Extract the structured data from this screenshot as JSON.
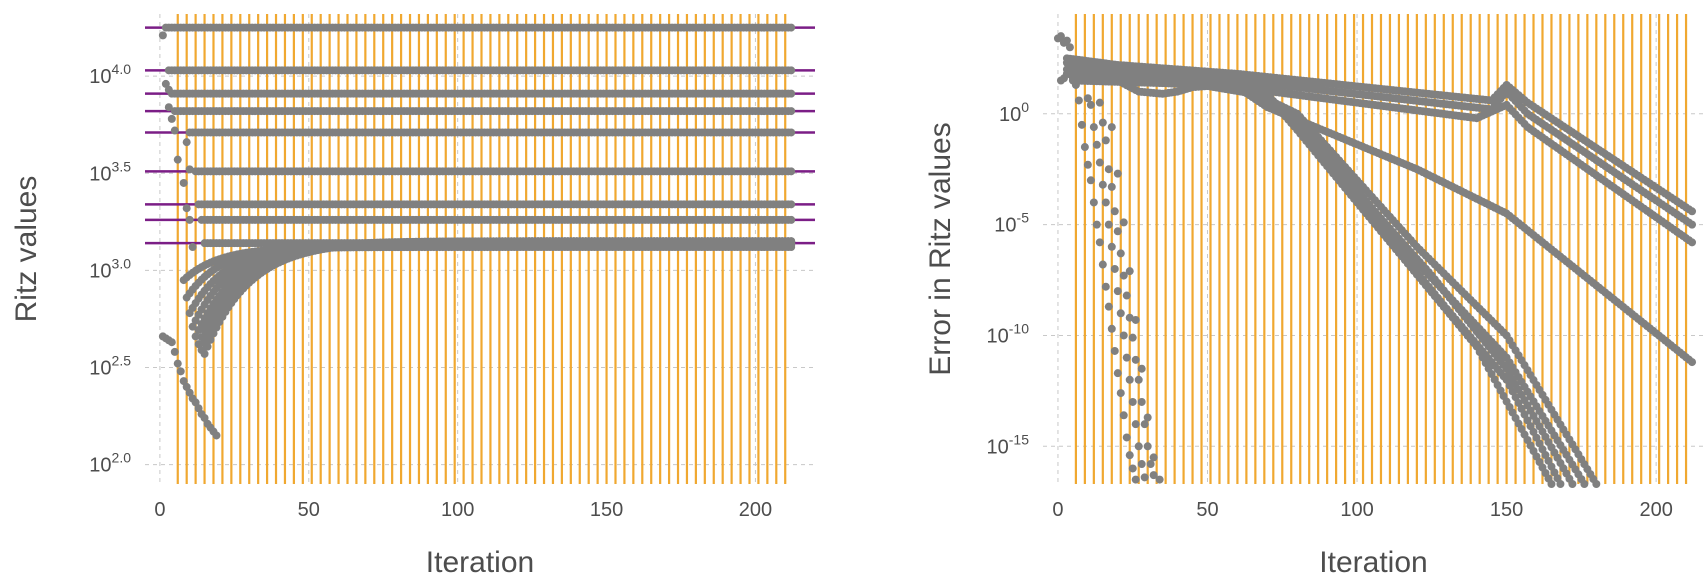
{
  "colors": {
    "points": "#808080",
    "vlines": "#f0a830",
    "hlines": "#7b1e86",
    "grid": "#c8c8c8",
    "text": "#4d4d4d"
  },
  "chart_data": [
    {
      "type": "scatter",
      "title": "",
      "xlabel": "Iteration",
      "ylabel": "Ritz values",
      "yscale": "log10",
      "xlim": [
        -5,
        220
      ],
      "ylim": [
        1.9,
        4.32
      ],
      "xticks": [
        {
          "value": 0,
          "label": "0"
        },
        {
          "value": 50,
          "label": "50"
        },
        {
          "value": 100,
          "label": "100"
        },
        {
          "value": 150,
          "label": "150"
        },
        {
          "value": 200,
          "label": "200"
        }
      ],
      "yticks": [
        {
          "value": 2.0,
          "base": "10",
          "exp": "2.0"
        },
        {
          "value": 2.5,
          "base": "10",
          "exp": "2.5"
        },
        {
          "value": 3.0,
          "base": "10",
          "exp": "3.0"
        },
        {
          "value": 3.5,
          "base": "10",
          "exp": "3.5"
        },
        {
          "value": 4.0,
          "base": "10",
          "exp": "4.0"
        }
      ],
      "grid": true,
      "vertical_lines": {
        "from": 6,
        "to": 212,
        "step": 3
      },
      "horizontal_lines_log10": [
        4.25,
        4.03,
        3.91,
        3.82,
        3.71,
        3.51,
        3.34,
        3.26,
        3.14
      ],
      "converged_series_log10": [
        {
          "value": 4.25,
          "start": 2
        },
        {
          "value": 4.03,
          "start": 3
        },
        {
          "value": 3.91,
          "start": 4
        },
        {
          "value": 3.82,
          "start": 5
        },
        {
          "value": 3.71,
          "start": 10
        },
        {
          "value": 3.51,
          "start": 12
        },
        {
          "value": 3.34,
          "start": 13
        },
        {
          "value": 3.26,
          "start": 14
        },
        {
          "value": 3.14,
          "start": 15
        }
      ],
      "early_points_log10": [
        [
          1,
          4.21
        ],
        [
          2,
          3.96
        ],
        [
          3,
          3.84
        ],
        [
          3,
          3.93
        ],
        [
          4,
          3.78
        ],
        [
          5,
          3.72
        ],
        [
          6,
          3.57
        ],
        [
          8,
          3.45
        ],
        [
          9,
          3.32
        ],
        [
          9,
          3.66
        ],
        [
          10,
          3.26
        ],
        [
          10,
          3.52
        ],
        [
          11,
          3.12
        ],
        [
          1,
          2.66
        ],
        [
          2,
          2.65
        ],
        [
          3,
          2.64
        ],
        [
          4,
          2.63
        ],
        [
          5,
          2.58
        ],
        [
          6,
          2.52
        ],
        [
          7,
          2.48
        ],
        [
          8,
          2.43
        ],
        [
          9,
          2.4
        ],
        [
          10,
          2.37
        ],
        [
          11,
          2.34
        ],
        [
          12,
          2.32
        ],
        [
          13,
          2.29
        ],
        [
          14,
          2.26
        ],
        [
          15,
          2.24
        ],
        [
          16,
          2.21
        ],
        [
          17,
          2.19
        ],
        [
          18,
          2.17
        ],
        [
          19,
          2.15
        ]
      ],
      "transient_curves": [
        {
          "start": 8,
          "from": 2.95,
          "to": 3.12,
          "tau": 12
        },
        {
          "start": 9,
          "from": 2.86,
          "to": 3.13,
          "tau": 12
        },
        {
          "start": 10,
          "from": 2.78,
          "to": 3.14,
          "tau": 13
        },
        {
          "start": 11,
          "from": 2.71,
          "to": 3.14,
          "tau": 13
        },
        {
          "start": 12,
          "from": 2.66,
          "to": 3.14,
          "tau": 14
        },
        {
          "start": 13,
          "from": 2.62,
          "to": 3.15,
          "tau": 14
        },
        {
          "start": 14,
          "from": 2.59,
          "to": 3.15,
          "tau": 15
        },
        {
          "start": 15,
          "from": 2.57,
          "to": 3.15,
          "tau": 15
        }
      ]
    },
    {
      "type": "scatter",
      "title": "",
      "xlabel": "Iteration",
      "ylabel": "Error in Ritz values",
      "yscale": "log10",
      "xlim": [
        -5,
        216
      ],
      "ylim": [
        -16.7,
        4.5
      ],
      "xticks": [
        {
          "value": 0,
          "label": "0"
        },
        {
          "value": 50,
          "label": "50"
        },
        {
          "value": 100,
          "label": "100"
        },
        {
          "value": 150,
          "label": "150"
        },
        {
          "value": 200,
          "label": "200"
        }
      ],
      "yticks": [
        {
          "value": 0,
          "base": "10",
          "exp": "0"
        },
        {
          "value": -5,
          "base": "10",
          "exp": "-5"
        },
        {
          "value": -10,
          "base": "10",
          "exp": "-10"
        },
        {
          "value": -15,
          "base": "10",
          "exp": "-15"
        }
      ],
      "grid": true,
      "vertical_lines": {
        "from": 6,
        "to": 212,
        "step": 3
      },
      "error_series_log10": [
        {
          "start": 3,
          "knots": [
            [
              3,
              2.5
            ],
            [
              20,
              2.2
            ],
            [
              60,
              1.8
            ],
            [
              145,
              0.6
            ],
            [
              150,
              1.3
            ],
            [
              157,
              0.5
            ],
            [
              212,
              -4.4
            ]
          ]
        },
        {
          "start": 3,
          "knots": [
            [
              3,
              2.3
            ],
            [
              20,
              2.0
            ],
            [
              60,
              1.5
            ],
            [
              145,
              0.2
            ],
            [
              150,
              1.0
            ],
            [
              157,
              0.0
            ],
            [
              212,
              -5.0
            ]
          ]
        },
        {
          "start": 3,
          "knots": [
            [
              3,
              2.0
            ],
            [
              20,
              1.8
            ],
            [
              60,
              1.2
            ],
            [
              140,
              -0.2
            ],
            [
              150,
              0.4
            ],
            [
              157,
              -0.6
            ],
            [
              212,
              -5.8
            ]
          ]
        },
        {
          "start": 3,
          "knots": [
            [
              3,
              1.8
            ],
            [
              20,
              1.5
            ],
            [
              60,
              1.2
            ],
            [
              70,
              0.3
            ],
            [
              120,
              -2.5
            ],
            [
              150,
              -4.5
            ],
            [
              212,
              -11.2
            ]
          ]
        },
        {
          "start": 5,
          "knots": [
            [
              5,
              1.5
            ],
            [
              30,
              1.4
            ],
            [
              60,
              1.3
            ],
            [
              80,
              0.0
            ],
            [
              120,
              -6.0
            ],
            [
              150,
              -10.0
            ],
            [
              180,
              -16.7
            ]
          ]
        },
        {
          "start": 5,
          "knots": [
            [
              5,
              1.6
            ],
            [
              30,
              1.5
            ],
            [
              65,
              1.2
            ],
            [
              85,
              -1.0
            ],
            [
              120,
              -6.7
            ],
            [
              150,
              -11.0
            ],
            [
              176,
              -16.7
            ]
          ]
        },
        {
          "start": 4,
          "knots": [
            [
              4,
              1.8
            ],
            [
              30,
              1.6
            ],
            [
              68,
              1.0
            ],
            [
              90,
              -2.0
            ],
            [
              125,
              -7.3
            ],
            [
              150,
              -11.5
            ],
            [
              172,
              -16.7
            ]
          ]
        },
        {
          "start": 4,
          "knots": [
            [
              4,
              2.0
            ],
            [
              30,
              1.7
            ],
            [
              70,
              0.8
            ],
            [
              95,
              -3.0
            ],
            [
              130,
              -8.8
            ],
            [
              150,
              -12.0
            ],
            [
              168,
              -16.7
            ]
          ]
        },
        {
          "start": 6,
          "knots": [
            [
              6,
              1.8
            ],
            [
              20,
              1.5
            ],
            [
              27,
              1.0
            ],
            [
              35,
              0.9
            ],
            [
              40,
              1.0
            ],
            [
              45,
              1.2
            ],
            [
              55,
              1.3
            ],
            [
              70,
              0.9
            ],
            [
              100,
              -4.0
            ],
            [
              140,
              -10.5
            ],
            [
              165,
              -16.7
            ]
          ]
        }
      ],
      "early_points_log10": [
        [
          0,
          3.4
        ],
        [
          1,
          3.5
        ],
        [
          2,
          3.2
        ],
        [
          3,
          3.3
        ],
        [
          4,
          3.0
        ],
        [
          5,
          2.4
        ],
        [
          1,
          1.5
        ],
        [
          2,
          1.6
        ],
        [
          6,
          1.3
        ],
        [
          7,
          0.6
        ],
        [
          8,
          -0.5
        ],
        [
          9,
          -1.5
        ],
        [
          10,
          -2.3
        ],
        [
          11,
          -3.0
        ],
        [
          12,
          -4.0
        ],
        [
          13,
          -5.0
        ],
        [
          14,
          -5.8
        ],
        [
          15,
          -6.8
        ],
        [
          16,
          -7.8
        ],
        [
          17,
          -8.7
        ],
        [
          18,
          -9.7
        ],
        [
          19,
          -10.7
        ],
        [
          20,
          -11.7
        ],
        [
          21,
          -12.6
        ],
        [
          22,
          -13.6
        ],
        [
          23,
          -14.6
        ],
        [
          24,
          -15.4
        ],
        [
          25,
          -16.0
        ],
        [
          26,
          -16.5
        ],
        [
          10,
          0.7
        ],
        [
          11,
          0.4
        ],
        [
          12,
          -0.6
        ],
        [
          13,
          -1.4
        ],
        [
          14,
          -2.2
        ],
        [
          15,
          -3.2
        ],
        [
          16,
          -4.0
        ],
        [
          17,
          -5.0
        ],
        [
          18,
          -6.0
        ],
        [
          19,
          -7.0
        ],
        [
          20,
          -8.0
        ],
        [
          21,
          -9.0
        ],
        [
          22,
          -10.0
        ],
        [
          23,
          -11.0
        ],
        [
          24,
          -12.0
        ],
        [
          25,
          -13.0
        ],
        [
          26,
          -14.0
        ],
        [
          27,
          -15.0
        ],
        [
          28,
          -15.8
        ],
        [
          29,
          -16.4
        ],
        [
          14,
          0.5
        ],
        [
          15,
          -0.4
        ],
        [
          16,
          -1.2
        ],
        [
          17,
          -2.5
        ],
        [
          18,
          -3.3
        ],
        [
          19,
          -4.4
        ],
        [
          20,
          -5.3
        ],
        [
          21,
          -6.3
        ],
        [
          22,
          -7.3
        ],
        [
          23,
          -8.2
        ],
        [
          24,
          -9.2
        ],
        [
          25,
          -10.1
        ],
        [
          26,
          -11.1
        ],
        [
          27,
          -12.0
        ],
        [
          28,
          -13.0
        ],
        [
          29,
          -14.0
        ],
        [
          30,
          -15.0
        ],
        [
          31,
          -15.8
        ],
        [
          32,
          -16.3
        ],
        [
          18,
          -0.6
        ],
        [
          20,
          -2.7
        ],
        [
          22,
          -4.9
        ],
        [
          24,
          -7.1
        ],
        [
          26,
          -9.3
        ],
        [
          28,
          -11.5
        ],
        [
          30,
          -13.7
        ],
        [
          32,
          -15.5
        ],
        [
          34,
          -16.5
        ]
      ]
    }
  ]
}
